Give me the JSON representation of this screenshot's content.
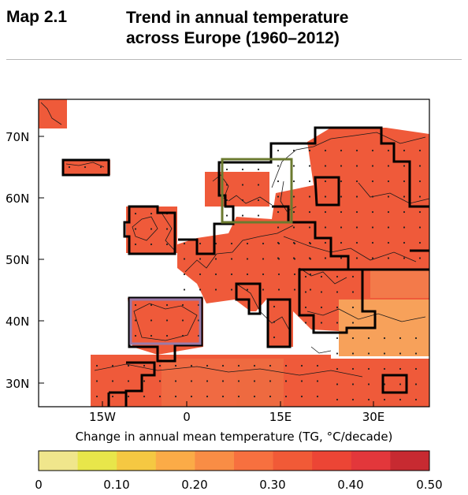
{
  "header": {
    "map_label": "Map 2.1",
    "title_line1": "Trend in annual temperature",
    "title_line2": "across Europe (1960–2012)"
  },
  "map": {
    "lat_labels": [
      "70N",
      "60N",
      "50N",
      "40N",
      "30N"
    ],
    "lon_labels": [
      "15W",
      "0",
      "15E",
      "30E"
    ],
    "highlight_boxes": [
      {
        "name": "scandinavia-box",
        "color": "#6b7a2f"
      },
      {
        "name": "iberia-box",
        "color": "#9b7aa8"
      }
    ],
    "colors": {
      "sea": "#ffffff",
      "frame": "#000000",
      "grid_outline": "#000000",
      "coastline": "#1a1a1a"
    }
  },
  "legend": {
    "title": "Change in annual mean temperature (TG, °C/decade)",
    "colors": [
      "#f0e68c",
      "#e8e64a",
      "#f5c842",
      "#fbab47",
      "#f98d45",
      "#f7703f",
      "#f15a37",
      "#ec4535",
      "#e3373b",
      "#c72a31"
    ],
    "tick_labels": [
      "0",
      "0.10",
      "0.20",
      "0.30",
      "0.40",
      "0.50"
    ]
  }
}
